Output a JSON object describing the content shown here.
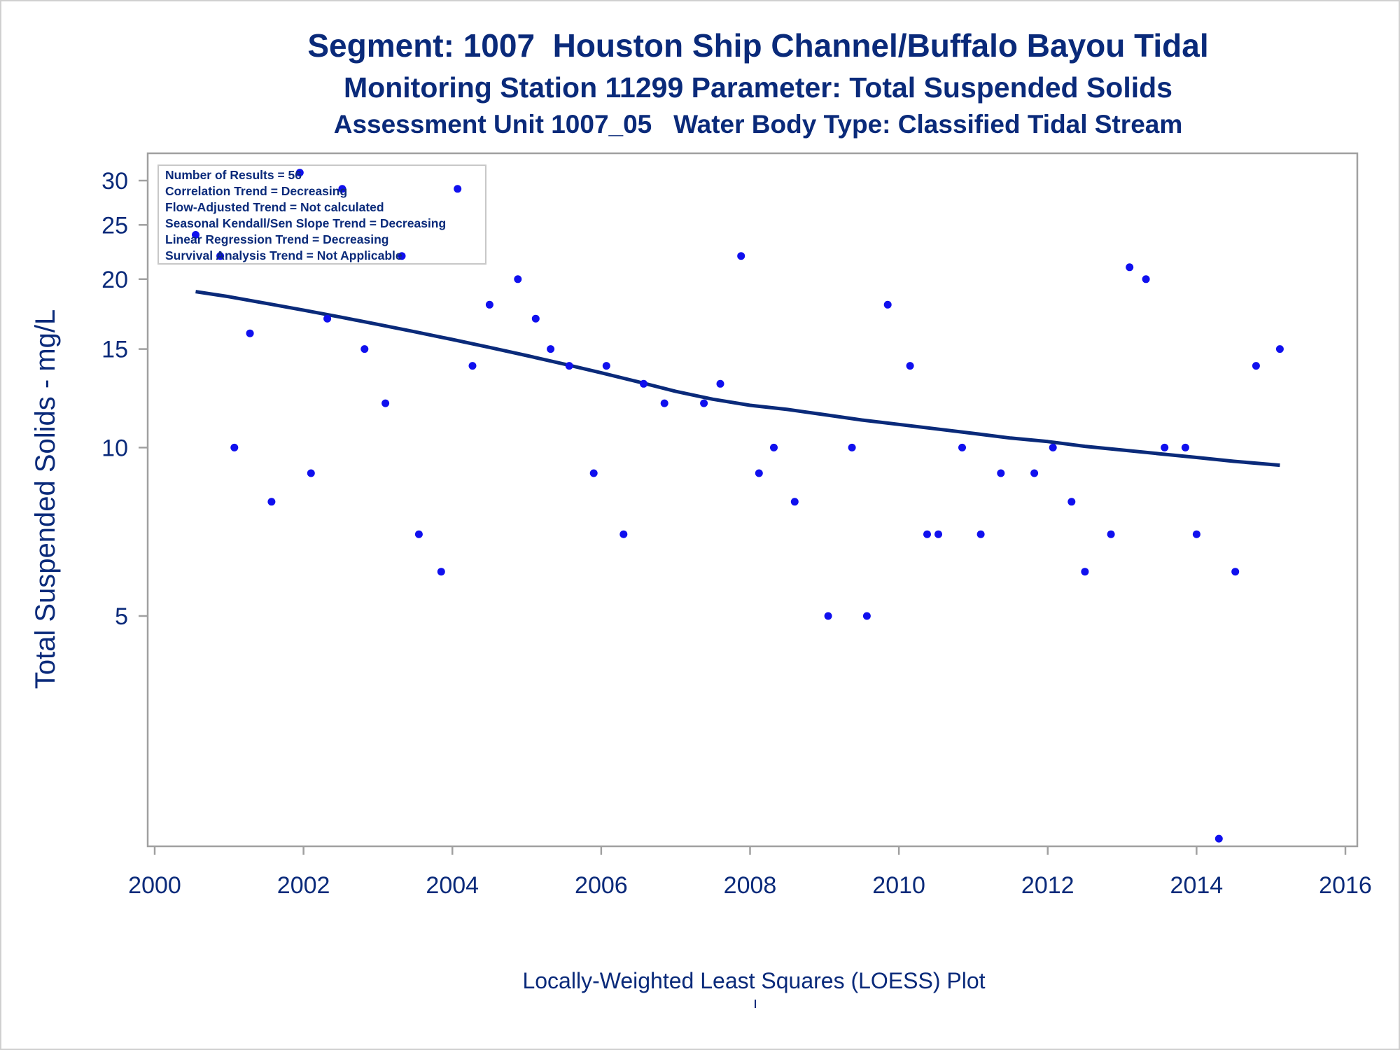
{
  "titles": {
    "line1": "Segment: 1007  Houston Ship Channel/Buffalo Bayou Tidal",
    "line2": "Monitoring Station 11299 Parameter: Total Suspended Solids",
    "line3": "Assessment Unit 1007_05   Water Body Type: Classified Tidal Stream"
  },
  "footnote": "Locally-Weighted Least Squares (LOESS) Plot",
  "stats_box": [
    "Number of Results = 56",
    "Correlation Trend = Decreasing",
    "Flow-Adjusted Trend = Not calculated",
    "Seasonal Kendall/Sen Slope Trend = Decreasing",
    "Linear Regression Trend = Decreasing",
    "Survival Analysis Trend = Not Applicable"
  ],
  "colors": {
    "text": "#0a2a7a",
    "points": "#1010ee",
    "trend_line": "#0a2a7a",
    "frame": "#a0a0a0"
  },
  "chart_data": {
    "type": "scatter",
    "xlabel": "",
    "ylabel": "Total Suspended Solids - mg/L",
    "xlim": [
      2000,
      2016
    ],
    "ylim": [
      2,
      33
    ],
    "yscale": "log",
    "xticks": [
      2000,
      2002,
      2004,
      2006,
      2008,
      2010,
      2012,
      2014,
      2016
    ],
    "yticks": [
      5,
      10,
      15,
      20,
      25,
      30
    ],
    "grid": false,
    "series": [
      {
        "kind": "points",
        "x": [
          2000.55,
          2000.88,
          2001.07,
          2001.28,
          2001.57,
          2001.95,
          2002.1,
          2002.32,
          2002.52,
          2002.82,
          2003.1,
          2003.32,
          2003.55,
          2003.85,
          2004.07,
          2004.27,
          2004.5,
          2004.88,
          2005.12,
          2005.32,
          2005.57,
          2005.9,
          2006.07,
          2006.3,
          2006.57,
          2006.85,
          2007.38,
          2007.6,
          2007.88,
          2008.12,
          2008.32,
          2008.6,
          2009.05,
          2009.37,
          2009.57,
          2009.85,
          2010.15,
          2010.38,
          2010.53,
          2010.85,
          2011.1,
          2011.37,
          2011.82,
          2012.07,
          2012.32,
          2012.5,
          2012.85,
          2013.1,
          2013.32,
          2013.57,
          2013.85,
          2014.0,
          2014.3,
          2014.52,
          2014.8,
          2015.12
        ],
        "y": [
          24,
          22,
          10,
          16,
          8,
          31,
          9,
          17,
          29,
          15,
          12,
          22,
          7,
          6,
          29,
          14,
          18,
          20,
          17,
          15,
          14,
          9,
          14,
          7,
          13,
          12,
          12,
          13,
          22,
          9,
          10,
          8,
          5,
          10,
          5,
          18,
          14,
          7,
          7,
          10,
          7,
          9,
          9,
          10,
          8,
          6,
          7,
          21,
          20,
          10,
          10,
          7,
          2,
          6,
          14,
          15
        ]
      },
      {
        "kind": "loess",
        "x": [
          2000.55,
          2001,
          2001.5,
          2002,
          2002.5,
          2003,
          2003.5,
          2004,
          2004.5,
          2005,
          2005.5,
          2006,
          2006.5,
          2007,
          2007.5,
          2008,
          2008.5,
          2009,
          2009.5,
          2010,
          2010.5,
          2011,
          2011.5,
          2012,
          2012.5,
          2013,
          2013.5,
          2014,
          2014.5,
          2015.12
        ],
        "y": [
          19.0,
          18.6,
          18.1,
          17.6,
          17.1,
          16.6,
          16.1,
          15.6,
          15.1,
          14.6,
          14.1,
          13.6,
          13.1,
          12.6,
          12.2,
          11.9,
          11.7,
          11.45,
          11.2,
          11.0,
          10.8,
          10.6,
          10.4,
          10.25,
          10.05,
          9.9,
          9.75,
          9.6,
          9.45,
          9.3
        ]
      }
    ]
  }
}
